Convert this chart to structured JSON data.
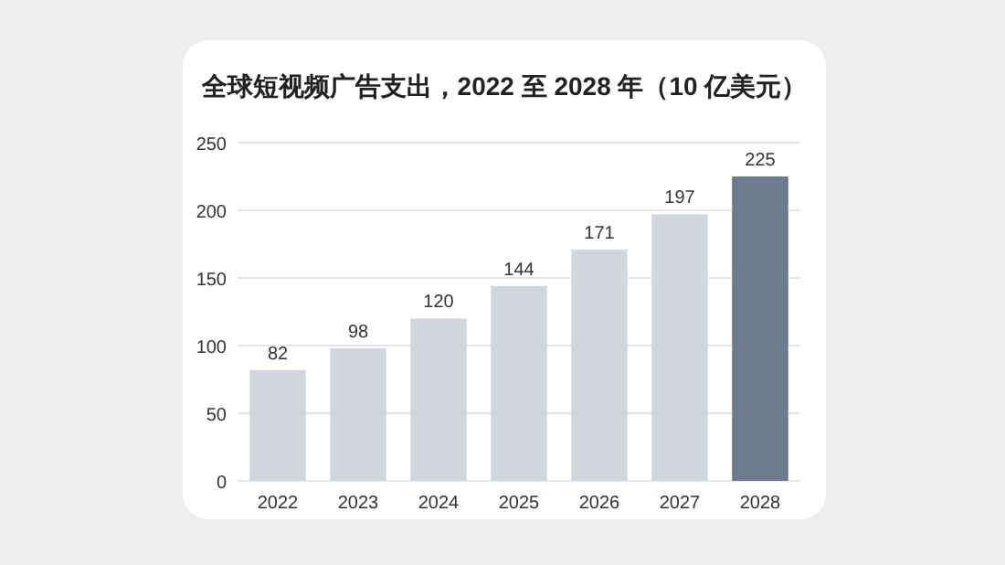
{
  "chart_data": {
    "type": "bar",
    "title": "全球短视频广告支出，2022 至 2028 年（10 亿美元）",
    "categories": [
      "2022",
      "2023",
      "2024",
      "2025",
      "2026",
      "2027",
      "2028"
    ],
    "values": [
      82,
      98,
      120,
      144,
      171,
      197,
      225
    ],
    "colors": [
      "#d3d7dd",
      "#d3d7dd",
      "#d3d7dd",
      "#d3d7dd",
      "#d3d7dd",
      "#d3d7dd",
      "#6d7b8c"
    ],
    "ylim": [
      0,
      250
    ],
    "yticks": [
      0,
      50,
      100,
      150,
      200,
      250
    ],
    "grid": "y",
    "data_labels": true
  }
}
